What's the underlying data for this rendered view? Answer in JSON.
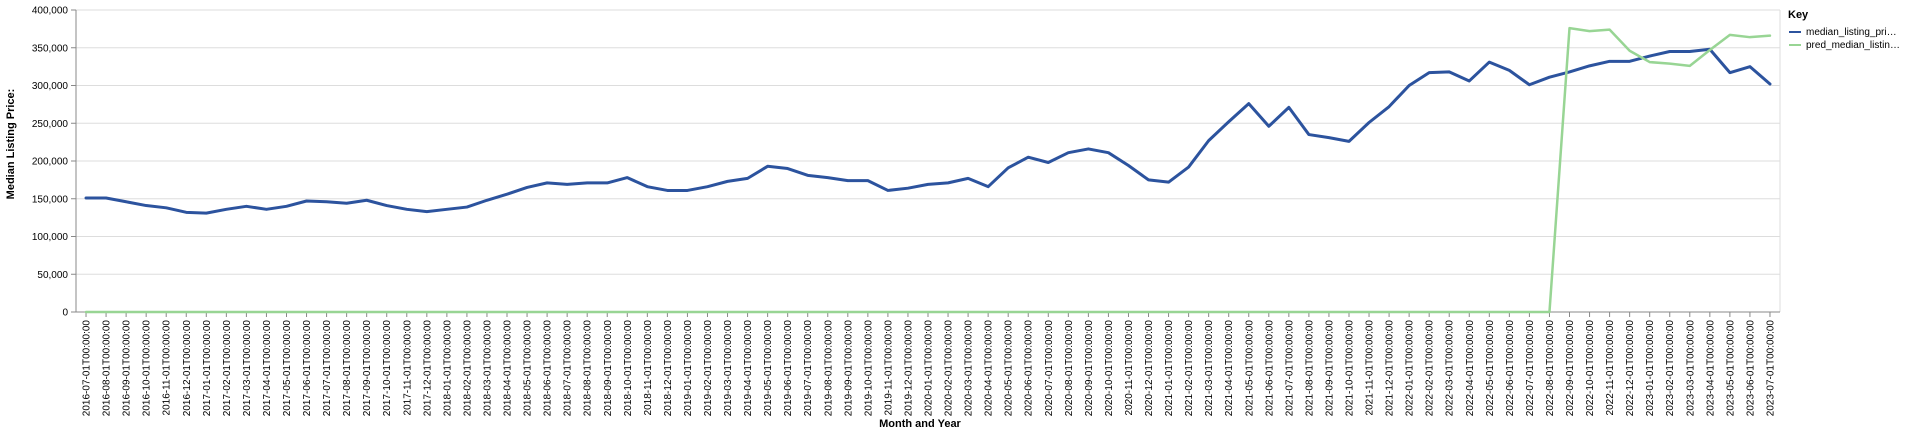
{
  "chart_data": {
    "type": "line",
    "xlabel": "Month and Year",
    "ylabel": "Median Listing Price:",
    "ylim": [
      0,
      400000
    ],
    "yticks": [
      0,
      50000,
      100000,
      150000,
      200000,
      250000,
      300000,
      350000,
      400000
    ],
    "ytick_labels": [
      "0",
      "50,000",
      "100,000",
      "150,000",
      "200,000",
      "250,000",
      "300,000",
      "350,000",
      "400,000"
    ],
    "grid": true,
    "legend": {
      "title": "Key",
      "placement": "right",
      "entries": [
        "median_listing_pri…",
        "pred_median_listin…"
      ]
    },
    "colors": {
      "median_listing_price": "#2c539e",
      "pred_median_listing_price": "#98d594"
    },
    "categories": [
      "2016-07-01T00:00:00",
      "2016-08-01T00:00:00",
      "2016-09-01T00:00:00",
      "2016-10-01T00:00:00",
      "2016-11-01T00:00:00",
      "2016-12-01T00:00:00",
      "2017-01-01T00:00:00",
      "2017-02-01T00:00:00",
      "2017-03-01T00:00:00",
      "2017-04-01T00:00:00",
      "2017-05-01T00:00:00",
      "2017-06-01T00:00:00",
      "2017-07-01T00:00:00",
      "2017-08-01T00:00:00",
      "2017-09-01T00:00:00",
      "2017-10-01T00:00:00",
      "2017-11-01T00:00:00",
      "2017-12-01T00:00:00",
      "2018-01-01T00:00:00",
      "2018-02-01T00:00:00",
      "2018-03-01T00:00:00",
      "2018-04-01T00:00:00",
      "2018-05-01T00:00:00",
      "2018-06-01T00:00:00",
      "2018-07-01T00:00:00",
      "2018-08-01T00:00:00",
      "2018-09-01T00:00:00",
      "2018-10-01T00:00:00",
      "2018-11-01T00:00:00",
      "2018-12-01T00:00:00",
      "2019-01-01T00:00:00",
      "2019-02-01T00:00:00",
      "2019-03-01T00:00:00",
      "2019-04-01T00:00:00",
      "2019-05-01T00:00:00",
      "2019-06-01T00:00:00",
      "2019-07-01T00:00:00",
      "2019-08-01T00:00:00",
      "2019-09-01T00:00:00",
      "2019-10-01T00:00:00",
      "2019-11-01T00:00:00",
      "2019-12-01T00:00:00",
      "2020-01-01T00:00:00",
      "2020-02-01T00:00:00",
      "2020-03-01T00:00:00",
      "2020-04-01T00:00:00",
      "2020-05-01T00:00:00",
      "2020-06-01T00:00:00",
      "2020-07-01T00:00:00",
      "2020-08-01T00:00:00",
      "2020-09-01T00:00:00",
      "2020-10-01T00:00:00",
      "2020-11-01T00:00:00",
      "2020-12-01T00:00:00",
      "2021-01-01T00:00:00",
      "2021-02-01T00:00:00",
      "2021-03-01T00:00:00",
      "2021-04-01T00:00:00",
      "2021-05-01T00:00:00",
      "2021-06-01T00:00:00",
      "2021-07-01T00:00:00",
      "2021-08-01T00:00:00",
      "2021-09-01T00:00:00",
      "2021-10-01T00:00:00",
      "2021-11-01T00:00:00",
      "2021-12-01T00:00:00",
      "2022-01-01T00:00:00",
      "2022-02-01T00:00:00",
      "2022-03-01T00:00:00",
      "2022-04-01T00:00:00",
      "2022-05-01T00:00:00",
      "2022-06-01T00:00:00",
      "2022-07-01T00:00:00",
      "2022-08-01T00:00:00",
      "2022-09-01T00:00:00",
      "2022-10-01T00:00:00",
      "2022-11-01T00:00:00",
      "2022-12-01T00:00:00",
      "2023-01-01T00:00:00",
      "2023-02-01T00:00:00",
      "2023-03-01T00:00:00",
      "2023-04-01T00:00:00",
      "2023-05-01T00:00:00",
      "2023-06-01T00:00:00",
      "2023-07-01T00:00:00"
    ],
    "series": [
      {
        "name": "median_listing_pri…",
        "values": [
          151000,
          151000,
          146000,
          141000,
          138000,
          132000,
          131000,
          136000,
          140000,
          136000,
          140000,
          147000,
          146000,
          144000,
          148000,
          141000,
          136000,
          133000,
          136000,
          139000,
          148000,
          156000,
          165000,
          171000,
          169000,
          171000,
          171000,
          178000,
          166000,
          161000,
          161000,
          166000,
          173000,
          177000,
          193000,
          190000,
          181000,
          178000,
          174000,
          174000,
          161000,
          164000,
          169000,
          171000,
          177000,
          166000,
          191000,
          205000,
          198000,
          211000,
          216000,
          211000,
          194000,
          175000,
          172000,
          192000,
          227000,
          252000,
          276000,
          246000,
          271000,
          235000,
          231000,
          226000,
          251000,
          272000,
          300000,
          317000,
          318000,
          306000,
          331000,
          320000,
          301000,
          311000,
          318000,
          326000,
          332000,
          332000,
          339000,
          345000,
          345000,
          348000,
          317000,
          325000,
          302000
        ]
      },
      {
        "name": "pred_median_listin…",
        "values": [
          0,
          0,
          0,
          0,
          0,
          0,
          0,
          0,
          0,
          0,
          0,
          0,
          0,
          0,
          0,
          0,
          0,
          0,
          0,
          0,
          0,
          0,
          0,
          0,
          0,
          0,
          0,
          0,
          0,
          0,
          0,
          0,
          0,
          0,
          0,
          0,
          0,
          0,
          0,
          0,
          0,
          0,
          0,
          0,
          0,
          0,
          0,
          0,
          0,
          0,
          0,
          0,
          0,
          0,
          0,
          0,
          0,
          0,
          0,
          0,
          0,
          0,
          0,
          0,
          0,
          0,
          0,
          0,
          0,
          0,
          0,
          0,
          0,
          0,
          376000,
          372000,
          374000,
          346000,
          331000,
          329000,
          326000,
          347000,
          367000,
          364000,
          366000
        ]
      }
    ]
  }
}
